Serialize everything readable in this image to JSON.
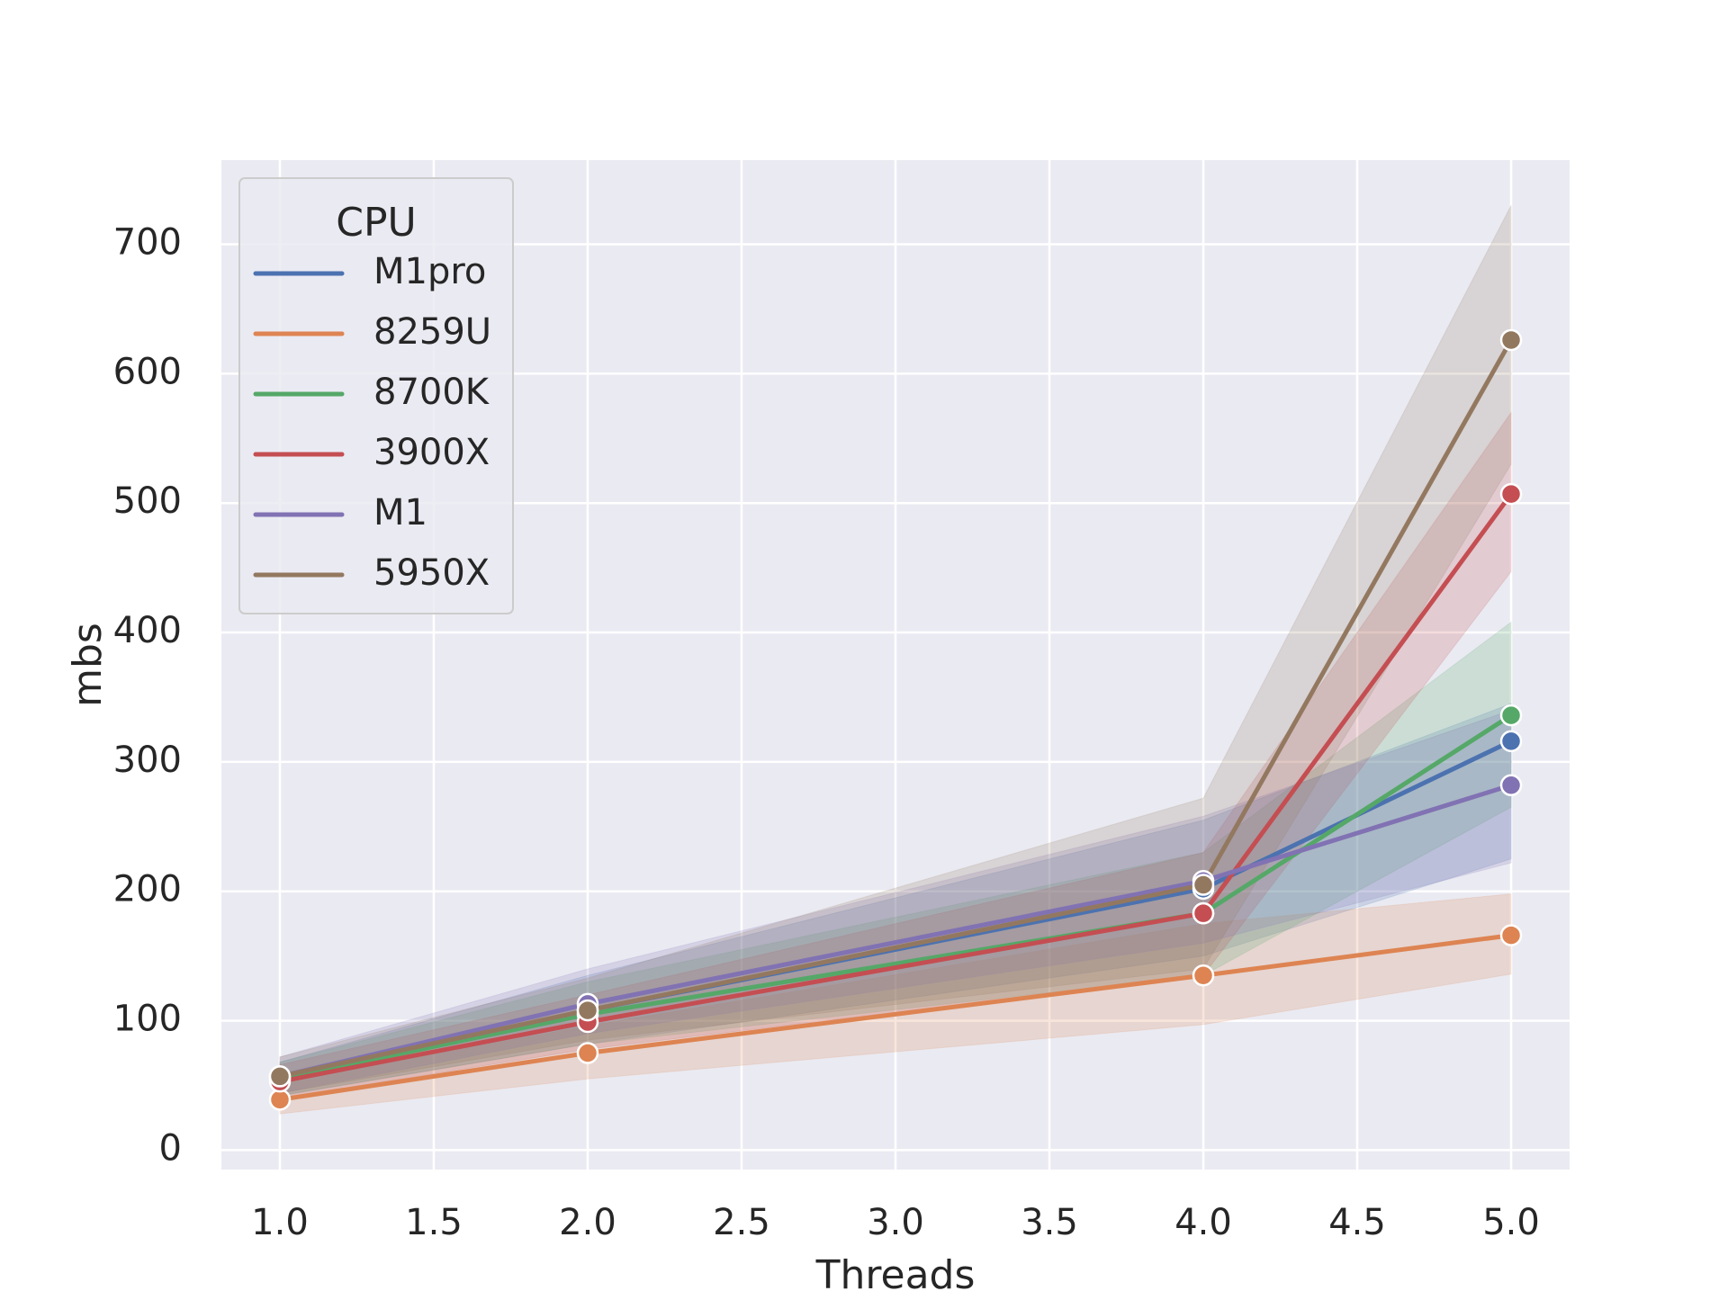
{
  "chart_data": {
    "type": "line",
    "xlabel": "Threads",
    "ylabel": "mbs",
    "xlim": [
      0.81,
      5.19
    ],
    "ylim": [
      -15,
      765
    ],
    "xticks": [
      1.0,
      1.5,
      2.0,
      2.5,
      3.0,
      3.5,
      4.0,
      4.5,
      5.0
    ],
    "xtick_labels": [
      "1.0",
      "1.5",
      "2.0",
      "2.5",
      "3.0",
      "3.5",
      "4.0",
      "4.5",
      "5.0"
    ],
    "yticks": [
      0,
      100,
      200,
      300,
      400,
      500,
      600,
      700
    ],
    "ytick_labels": [
      "0",
      "100",
      "200",
      "300",
      "400",
      "500",
      "600",
      "700"
    ],
    "grid": true,
    "legend": {
      "title": "CPU",
      "placement": "top-left"
    },
    "x": [
      1,
      2,
      4,
      5
    ],
    "series": [
      {
        "name": "M1pro",
        "color": "#4c72b0",
        "values": [
          55,
          108,
          202,
          316
        ],
        "lower": [
          42,
          82,
          150,
          225
        ],
        "upper": [
          68,
          135,
          255,
          345
        ]
      },
      {
        "name": "8259U",
        "color": "#dd8452",
        "values": [
          39,
          75,
          135,
          166
        ],
        "lower": [
          28,
          55,
          97,
          136
        ],
        "upper": [
          52,
          96,
          175,
          198
        ]
      },
      {
        "name": "8700K",
        "color": "#55a868",
        "values": [
          55,
          105,
          183,
          336
        ],
        "lower": [
          42,
          82,
          135,
          265
        ],
        "upper": [
          68,
          130,
          230,
          408
        ]
      },
      {
        "name": "3900X",
        "color": "#c44e52",
        "values": [
          53,
          99,
          183,
          507
        ],
        "lower": [
          40,
          78,
          135,
          447
        ],
        "upper": [
          66,
          120,
          230,
          570
        ]
      },
      {
        "name": "M1",
        "color": "#8172b3",
        "values": [
          57,
          113,
          208,
          282
        ],
        "lower": [
          44,
          90,
          160,
          222
        ],
        "upper": [
          72,
          140,
          258,
          340
        ]
      },
      {
        "name": "5950X",
        "color": "#937860",
        "values": [
          57,
          108,
          205,
          626
        ],
        "lower": [
          44,
          85,
          140,
          530
        ],
        "upper": [
          72,
          133,
          272,
          730
        ]
      }
    ]
  }
}
